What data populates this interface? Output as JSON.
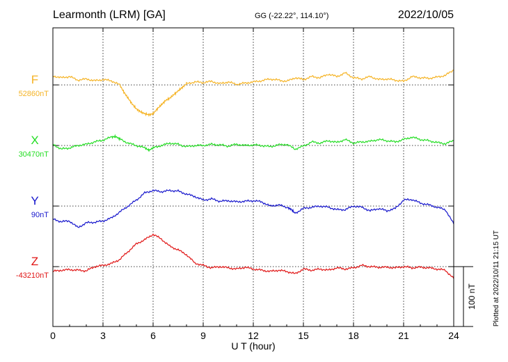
{
  "chart_data": {
    "type": "line",
    "title": "Learmonth (LRM)  [GA]",
    "subtitle": "GG (-22.22°, 114.10°)",
    "date": "2022/10/05",
    "xlabel": "U T (hour)",
    "xlim": [
      0,
      24
    ],
    "xticks": [
      "0",
      "3",
      "6",
      "9",
      "12",
      "15",
      "18",
      "21",
      "24"
    ],
    "scale_label": "100 nT",
    "footer": "Plotted at 2022/10/11 21:15 UT",
    "panel_range_nT": 100,
    "series": [
      {
        "name": "F",
        "baseline": "52860nT",
        "color": "#f5b324",
        "x": [
          0,
          0.5,
          1,
          1.5,
          2,
          2.5,
          3,
          3.5,
          4,
          4.25,
          4.5,
          4.75,
          5,
          5.25,
          5.5,
          5.75,
          6,
          6.25,
          6.5,
          6.75,
          7,
          7.25,
          7.5,
          7.75,
          8,
          8.5,
          9,
          9.5,
          10,
          10.5,
          11,
          11.5,
          12,
          12.5,
          13,
          13.5,
          14,
          14.5,
          15,
          15.5,
          16,
          16.5,
          17,
          17.5,
          18,
          18.5,
          19,
          19.5,
          20,
          20.5,
          21,
          21.5,
          22,
          22.5,
          23,
          23.5,
          24
        ],
        "values": [
          15,
          12,
          14,
          8,
          10,
          7,
          9,
          7,
          0,
          -12,
          -22,
          -32,
          -40,
          -45,
          -48,
          -50,
          -48,
          -40,
          -33,
          -26,
          -22,
          -16,
          -10,
          -4,
          2,
          5,
          4,
          6,
          2,
          5,
          1,
          3,
          5,
          7,
          10,
          8,
          6,
          12,
          9,
          14,
          12,
          18,
          14,
          20,
          12,
          10,
          14,
          9,
          10,
          8,
          6,
          14,
          12,
          11,
          13,
          16,
          25
        ]
      },
      {
        "name": "X",
        "baseline": "30470nT",
        "color": "#22dd22",
        "x": [
          0,
          0.5,
          1,
          1.5,
          2,
          2.5,
          3,
          3.5,
          3.75,
          4,
          4.5,
          5,
          5.5,
          5.75,
          6,
          6.5,
          7,
          7.5,
          8,
          8.5,
          9,
          9.5,
          10,
          10.5,
          11,
          11.5,
          12,
          12.5,
          13,
          13.5,
          14,
          14.5,
          15,
          15.5,
          16,
          16.5,
          17,
          17.5,
          18,
          18.5,
          19,
          19.5,
          20,
          20.5,
          21,
          21.5,
          22,
          22.5,
          23,
          23.5,
          24
        ],
        "values": [
          2,
          -6,
          -4,
          0,
          2,
          6,
          9,
          14,
          15,
          11,
          4,
          0,
          -4,
          -8,
          -4,
          0,
          4,
          2,
          -2,
          0,
          0,
          2,
          1,
          -1,
          2,
          0,
          1,
          0,
          -2,
          1,
          2,
          -6,
          -1,
          6,
          4,
          8,
          5,
          10,
          4,
          6,
          7,
          10,
          8,
          6,
          10,
          14,
          10,
          8,
          5,
          3,
          8
        ]
      },
      {
        "name": "Y",
        "baseline": "90nT",
        "color": "#1515cc",
        "x": [
          0,
          0.5,
          1,
          1.5,
          2,
          2.5,
          3,
          3.5,
          4,
          4.5,
          5,
          5.5,
          6,
          6.5,
          7,
          7.5,
          8,
          8.5,
          9,
          9.5,
          10,
          10.5,
          11,
          11.5,
          12,
          12.5,
          13,
          13.5,
          14,
          14.25,
          14.5,
          15,
          15.5,
          16,
          16.5,
          17,
          17.5,
          18,
          18.5,
          19,
          19.5,
          20,
          20.5,
          21,
          21.5,
          22,
          22.5,
          23,
          23.5,
          24
        ],
        "values": [
          -22,
          -26,
          -25,
          -36,
          -28,
          -27,
          -25,
          -20,
          -10,
          0,
          10,
          22,
          26,
          24,
          26,
          25,
          20,
          16,
          10,
          12,
          8,
          9,
          7,
          8,
          9,
          7,
          0,
          2,
          -2,
          -5,
          -12,
          -4,
          -2,
          0,
          -2,
          -6,
          -6,
          0,
          -2,
          -8,
          -4,
          -8,
          -4,
          10,
          11,
          5,
          2,
          -2,
          -6,
          -30
        ]
      },
      {
        "name": "Z",
        "baseline": "-43210nT",
        "color": "#e01414",
        "x": [
          0,
          0.5,
          1,
          1.5,
          2,
          2.5,
          3,
          3.5,
          4,
          4.5,
          5,
          5.5,
          6,
          6.5,
          7,
          7.5,
          8,
          8.5,
          9,
          9.5,
          10,
          10.5,
          11,
          11.5,
          12,
          12.5,
          13,
          13.5,
          14,
          14.5,
          15,
          15.5,
          16,
          16.5,
          17,
          17.5,
          18,
          18.5,
          19,
          19.5,
          20,
          20.5,
          21,
          21.5,
          22,
          22.5,
          23,
          23.5,
          24
        ],
        "values": [
          -8,
          -6,
          -5,
          -6,
          -7,
          0,
          2,
          5,
          12,
          25,
          38,
          45,
          54,
          46,
          34,
          28,
          20,
          6,
          2,
          -2,
          0,
          -2,
          -4,
          -1,
          -4,
          -6,
          -8,
          -6,
          -8,
          -12,
          -4,
          -6,
          -4,
          -6,
          -2,
          -4,
          -2,
          2,
          0,
          -1,
          -1,
          -2,
          0,
          -2,
          -1,
          -2,
          -4,
          -6,
          -20
        ]
      }
    ]
  }
}
